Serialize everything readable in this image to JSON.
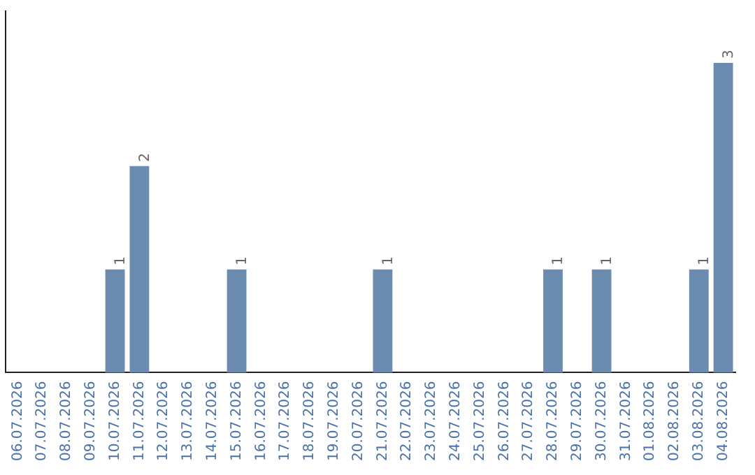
{
  "chart_data": {
    "type": "bar",
    "categories": [
      "06.07.2026",
      "07.07.2026",
      "08.07.2026",
      "09.07.2026",
      "10.07.2026",
      "11.07.2026",
      "12.07.2026",
      "13.07.2026",
      "14.07.2026",
      "15.07.2026",
      "16.07.2026",
      "17.07.2026",
      "18.07.2026",
      "19.07.2026",
      "20.07.2026",
      "21.07.2026",
      "22.07.2026",
      "23.07.2026",
      "24.07.2026",
      "25.07.2026",
      "26.07.2026",
      "27.07.2026",
      "28.07.2026",
      "29.07.2026",
      "30.07.2026",
      "31.07.2026",
      "01.08.2026",
      "02.08.2026",
      "03.08.2026",
      "04.08.2026"
    ],
    "values": [
      0,
      0,
      0,
      0,
      1,
      2,
      0,
      0,
      0,
      1,
      0,
      0,
      0,
      0,
      0,
      1,
      0,
      0,
      0,
      0,
      0,
      0,
      1,
      0,
      1,
      0,
      0,
      0,
      1,
      3
    ],
    "value_labels": [
      null,
      null,
      null,
      null,
      "1",
      "2",
      null,
      null,
      null,
      "1",
      null,
      null,
      null,
      null,
      null,
      "1",
      null,
      null,
      null,
      null,
      null,
      null,
      "1",
      null,
      "1",
      null,
      null,
      null,
      "1",
      "3"
    ],
    "color": "#6b8cae",
    "grid": false,
    "legend": false,
    "tick_labels": "x"
  }
}
